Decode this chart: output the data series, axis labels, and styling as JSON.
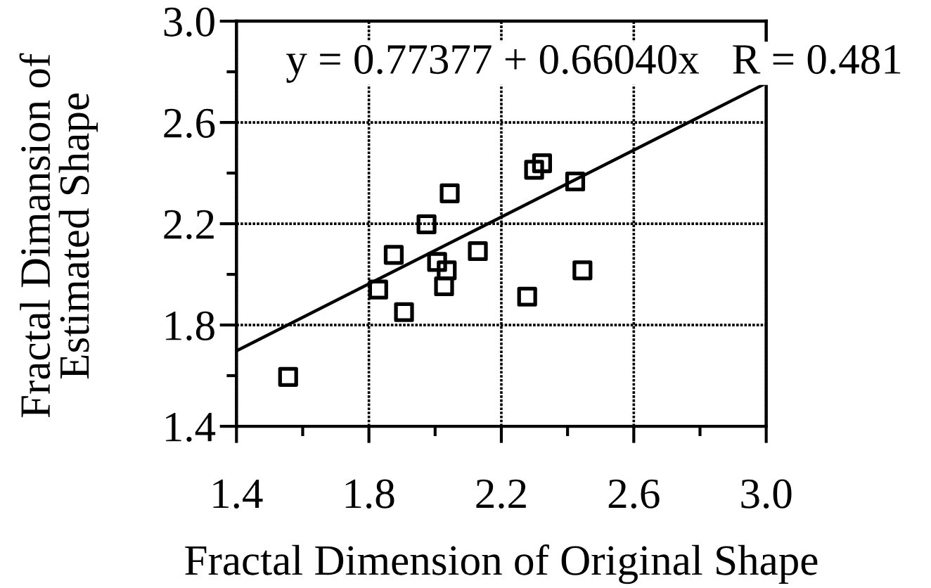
{
  "chart_data": {
    "type": "scatter",
    "xlabel": "Fractal Dimension of Original Shape",
    "ylabel": "Fractal Dimansion of\nEstimated Shape",
    "annotations": [
      "y = 0.77377 + 0.66040x   R = 0.481"
    ],
    "series": [
      {
        "color": "#000000",
        "marker": "square",
        "x": [
          1.556,
          1.828,
          1.875,
          1.906,
          1.974,
          2.006,
          2.035,
          2.027,
          2.044,
          2.129,
          2.278,
          2.299,
          2.323,
          2.423,
          2.445
        ],
        "values": [
          1.595,
          1.94,
          2.077,
          1.851,
          2.198,
          2.049,
          2.016,
          1.953,
          2.32,
          2.092,
          1.912,
          2.413,
          2.439,
          2.367,
          2.016
        ]
      },
      {
        "type": "line",
        "color": "#000000",
        "marker": "none",
        "line_style": "solid",
        "x": [
          1.4,
          3.0
        ],
        "values": [
          1.698,
          2.755
        ]
      }
    ],
    "xlim": [
      1.4,
      3.0
    ],
    "ylim": [
      1.4,
      3.0
    ],
    "xticks": [
      1.4,
      {
        "value": 1.6,
        "label": null
      },
      1.8,
      {
        "value": 2.0,
        "label": null
      },
      2.2,
      {
        "value": 2.4,
        "label": null
      },
      2.6,
      {
        "value": 2.8,
        "label": null
      },
      {
        "value": 3.0,
        "label": "3.0"
      }
    ],
    "yticks": [
      1.4,
      {
        "value": 1.6,
        "label": null
      },
      1.8,
      {
        "value": 2.0,
        "label": null
      },
      2.2,
      {
        "value": 2.4,
        "label": null
      },
      2.6,
      {
        "value": 2.8,
        "label": null
      },
      {
        "value": 3.0,
        "label": "3.0"
      }
    ],
    "grid": true,
    "legend": false
  }
}
